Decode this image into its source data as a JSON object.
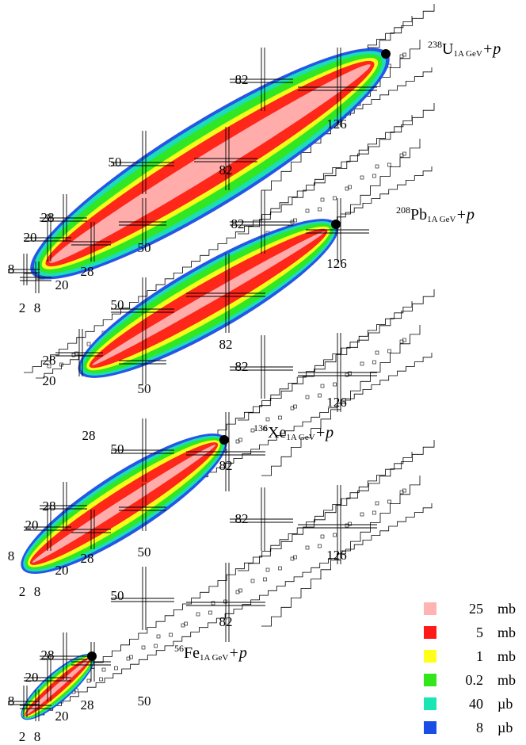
{
  "chart_data": {
    "type": "heatmap",
    "description_axes": "nuclide chart panels (N vs Z), no printed axis titles",
    "panels": [
      {
        "reaction": {
          "pre": "238",
          "element": "U",
          "sub": "1A GeV",
          "post": "+p"
        },
        "magic_labels": [
          "82",
          "126",
          "50",
          "82",
          "28",
          "50",
          "20",
          "28",
          "8",
          "20",
          "2",
          "8"
        ]
      },
      {
        "reaction": {
          "pre": "208",
          "element": "Pb",
          "sub": "1A GeV",
          "post": "+p"
        },
        "magic_labels": [
          "82",
          "126",
          "50",
          "82",
          "28",
          "50",
          "20",
          "28"
        ]
      },
      {
        "reaction": {
          "pre": "136",
          "element": "Xe",
          "sub": "1A GeV",
          "post": "+p"
        },
        "magic_labels": [
          "82",
          "126",
          "50",
          "82",
          "28",
          "50",
          "20",
          "28",
          "8",
          "20",
          "2",
          "8"
        ]
      },
      {
        "reaction": {
          "pre": "56",
          "element": "Fe",
          "sub": "1A GeV",
          "post": "+p"
        },
        "magic_labels": [
          "82",
          "126",
          "50",
          "82",
          "28",
          "50",
          "20",
          "28",
          "8",
          "20",
          "2",
          "8"
        ]
      }
    ],
    "legend": [
      {
        "value": "25",
        "unit": "mb",
        "color": "#ffb3b3"
      },
      {
        "value": "5",
        "unit": "mb",
        "color": "#ff1a1a"
      },
      {
        "value": "1",
        "unit": "mb",
        "color": "#ffff1a"
      },
      {
        "value": "0.2",
        "unit": "mb",
        "color": "#33e61a"
      },
      {
        "value": "40",
        "unit": "µb",
        "color": "#1ae6b3"
      },
      {
        "value": "8",
        "unit": "µb",
        "color": "#1a4de6"
      }
    ]
  }
}
